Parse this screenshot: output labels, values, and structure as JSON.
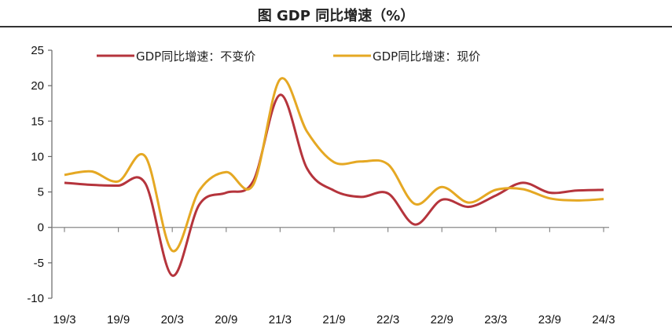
{
  "chart_data": {
    "type": "line",
    "title": "图  GDP 同比增速（%）",
    "xlabel": "",
    "ylabel": "",
    "ylim": [
      -10,
      25
    ],
    "yticks": [
      "25",
      "20",
      "15",
      "10",
      "5",
      "0",
      "-5",
      "-10"
    ],
    "ytick_values": [
      25,
      20,
      15,
      10,
      5,
      0,
      -5,
      -10
    ],
    "x": [
      "19Q1",
      "19Q2",
      "19Q3",
      "19Q4",
      "20Q1",
      "20Q2",
      "20Q3",
      "20Q4",
      "21Q1",
      "21Q2",
      "21Q3",
      "21Q4",
      "22Q1",
      "22Q2",
      "22Q3",
      "22Q4",
      "23Q1",
      "23Q2",
      "23Q3",
      "23Q4",
      "24Q1"
    ],
    "xtick_labels": [
      "19/3",
      "19/9",
      "20/3",
      "20/9",
      "21/3",
      "21/9",
      "22/3",
      "22/9",
      "23/3",
      "23/9",
      "24/3"
    ],
    "grid": false,
    "legend_position": "top",
    "series": [
      {
        "name": "GDP同比增速：不变价",
        "color": "#b5343c",
        "values": [
          6.3,
          6.0,
          5.9,
          6.2,
          -6.8,
          3.2,
          4.9,
          6.5,
          18.7,
          8.3,
          5.2,
          4.3,
          4.8,
          0.4,
          3.9,
          2.9,
          4.5,
          6.3,
          4.9,
          5.2,
          5.3
        ]
      },
      {
        "name": "GDP同比增速：现价",
        "color": "#e5a823",
        "values": [
          7.4,
          7.9,
          6.5,
          10.0,
          -3.3,
          5.2,
          7.8,
          6.0,
          20.9,
          13.5,
          9.2,
          9.3,
          8.9,
          3.3,
          5.7,
          3.5,
          5.3,
          5.4,
          4.1,
          3.8,
          4.0
        ]
      }
    ]
  }
}
